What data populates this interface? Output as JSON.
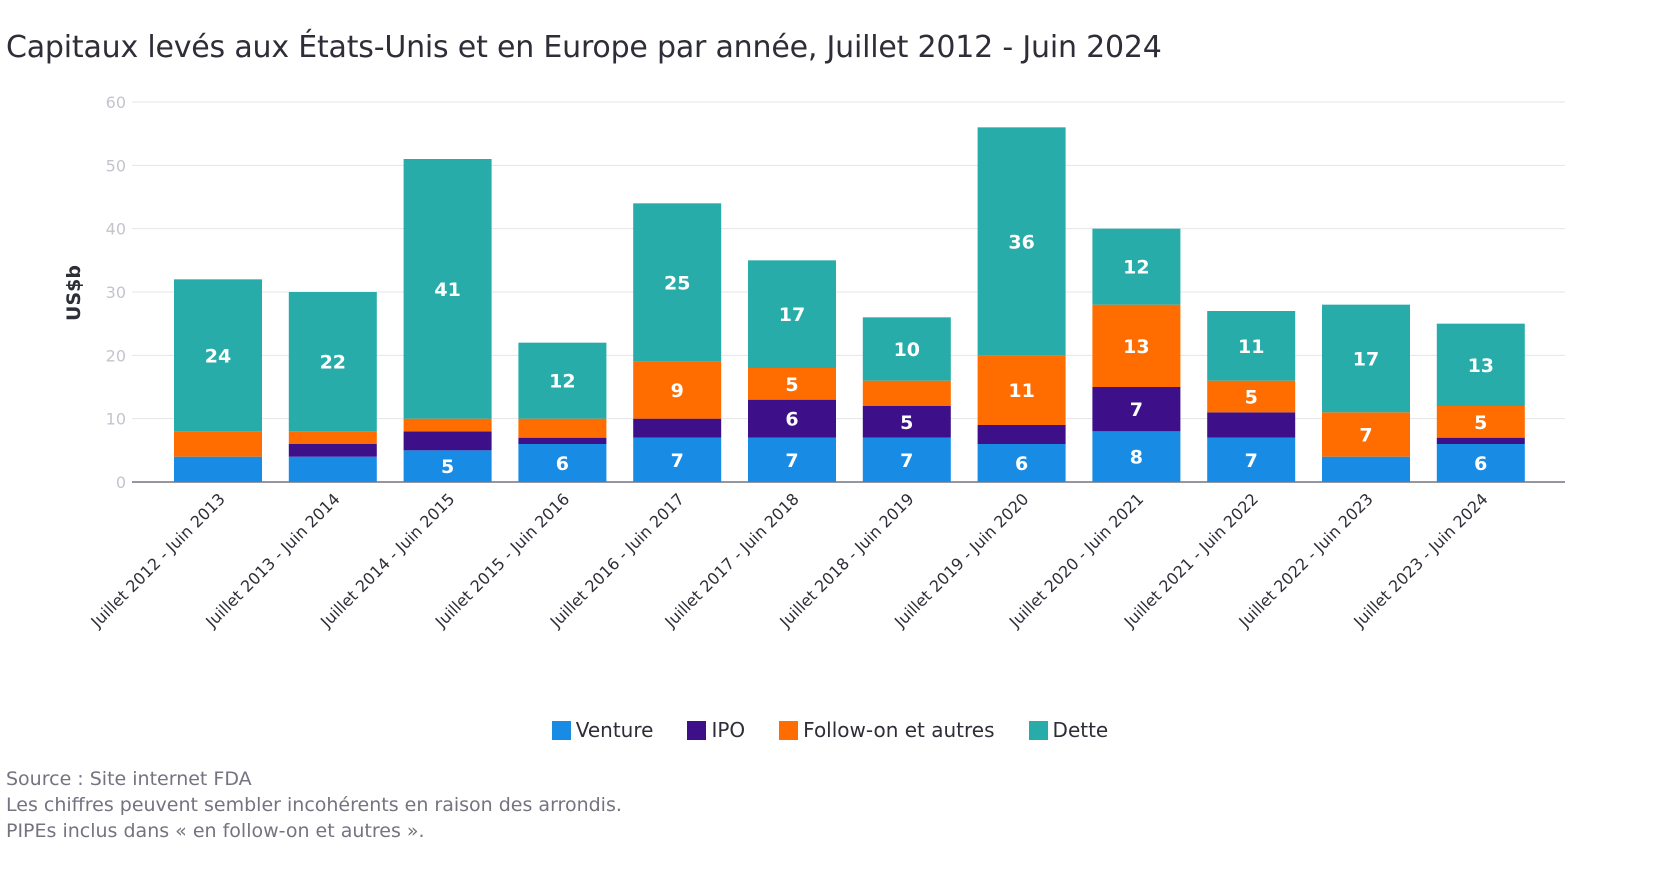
{
  "title": "Capitaux levés aux États-Unis et en Europe par année, Juillet 2012 - Juin 2024",
  "notes": {
    "source": "Source : Site internet FDA",
    "rounding": "Les chiffres peuvent sembler incohérents en raison des arrondis.",
    "pipes": "PIPEs inclus dans « en follow-on et autres »."
  },
  "chart_data": {
    "type": "bar",
    "stacked": true,
    "ylabel": "US$b",
    "ylim": [
      0,
      60
    ],
    "yticks": [
      0,
      10,
      20,
      30,
      40,
      50,
      60
    ],
    "grid": true,
    "legend_position": "bottom",
    "categories": [
      "Juillet 2012 - Juin 2013",
      "Juillet 2013 - Juin 2014",
      "Juillet 2014 - Juin 2015",
      "Juillet 2015 - Juin 2016",
      "Juillet 2016 - Juin 2017",
      "Juillet 2017 - Juin 2018",
      "Juillet 2018 - Juin 2019",
      "Juillet 2019 - Juin 2020",
      "Juillet 2020 - Juin 2021",
      "Juillet 2021 - Juin 2022",
      "Juillet 2022 - Juin 2023",
      "Juillet 2023 - Juin 2024"
    ],
    "series": [
      {
        "name": "Venture",
        "color": "#188ce5",
        "values": [
          4,
          4,
          5,
          6,
          7,
          7,
          7,
          6,
          8,
          7,
          4,
          6
        ],
        "labels": [
          null,
          null,
          "5",
          "6",
          "7",
          "7",
          "7",
          "6",
          "8",
          "7",
          null,
          "6"
        ]
      },
      {
        "name": "IPO",
        "color": "#3d108a",
        "values": [
          0,
          2,
          3,
          1,
          3,
          6,
          5,
          3,
          7,
          4,
          0,
          1
        ],
        "labels": [
          null,
          null,
          null,
          null,
          null,
          "6",
          "5",
          null,
          "7",
          null,
          null,
          null
        ]
      },
      {
        "name": "Follow-on et autres",
        "color": "#ff6d00",
        "values": [
          4,
          2,
          2,
          3,
          9,
          5,
          4,
          11,
          13,
          5,
          7,
          5
        ],
        "labels": [
          null,
          null,
          null,
          null,
          "9",
          "5",
          null,
          "11",
          "13",
          "5",
          "7",
          "5"
        ]
      },
      {
        "name": "Dette",
        "color": "#27acaa",
        "values": [
          24,
          22,
          41,
          12,
          25,
          17,
          10,
          36,
          12,
          11,
          17,
          13
        ],
        "labels": [
          "24",
          "22",
          "41",
          "12",
          "25",
          "17",
          "10",
          "36",
          "12",
          "11",
          "17",
          "13"
        ]
      }
    ]
  }
}
